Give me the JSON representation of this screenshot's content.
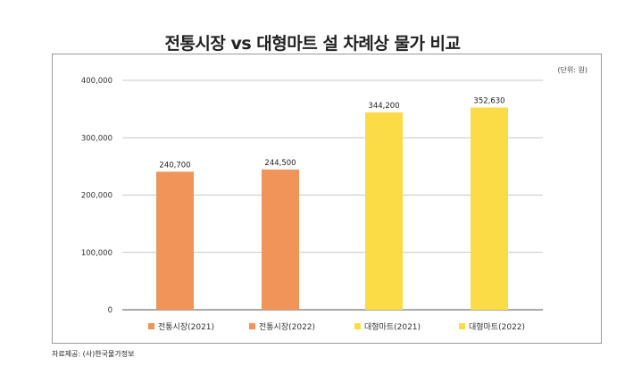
{
  "chart_data": {
    "type": "bar",
    "title": "전통시장 vs 대형마트 설 차례상 물가 비교",
    "unit_note": "(단위: 원)",
    "categories": [
      "전통시장(2021)",
      "전통시장(2022)",
      "대형마트(2021)",
      "대형마트(2022)"
    ],
    "values": [
      240700,
      244500,
      344200,
      352630
    ],
    "value_labels": [
      "240,700",
      "244,500",
      "344,200",
      "352,630"
    ],
    "colors": [
      "#f0945a",
      "#f0945a",
      "#fcdc46",
      "#fcdc46"
    ],
    "ylim": [
      0,
      400000
    ],
    "yticks": [
      0,
      100000,
      200000,
      300000,
      400000
    ],
    "ytick_labels": [
      "0",
      "100,000",
      "200,000",
      "300,000",
      "400,000"
    ],
    "grid": true,
    "legend_position": "bottom",
    "source": "자료제공: (사)한국물가정보"
  }
}
